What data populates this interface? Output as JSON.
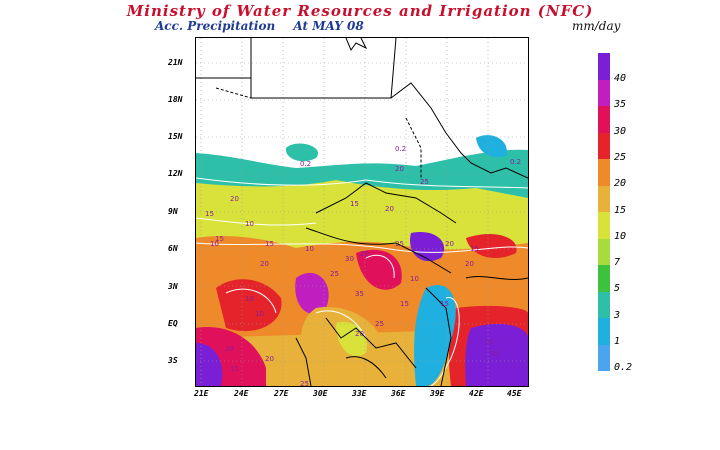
{
  "header": {
    "title": "Ministry of Water Resources and Irrigation (NFC)",
    "subtitle_label": "Acc. Precipitation",
    "subtitle_date": "At MAY 08",
    "units": "mm/day"
  },
  "map": {
    "lat_labels": [
      "21N",
      "18N",
      "15N",
      "12N",
      "9N",
      "6N",
      "3N",
      "EQ",
      "3S"
    ],
    "lon_labels": [
      "21E",
      "24E",
      "27E",
      "30E",
      "33E",
      "36E",
      "39E",
      "42E",
      "45E"
    ],
    "contour_labels": [
      "0.2",
      "0.2",
      "0.2",
      "10",
      "15",
      "20",
      "25",
      "20",
      "15",
      "15",
      "10",
      "20",
      "25",
      "30",
      "35",
      "20",
      "15",
      "10",
      "10",
      "20",
      "15",
      "20",
      "25",
      "20",
      "25",
      "15",
      "10",
      "20",
      "15",
      "20",
      "25",
      "30",
      "35",
      "10",
      "15",
      "20"
    ]
  },
  "colorbar": {
    "labels": [
      "40",
      "35",
      "30",
      "25",
      "20",
      "15",
      "10",
      "7",
      "5",
      "3",
      "1",
      "0.2"
    ],
    "colors": [
      "#7a1fd6",
      "#c01fc0",
      "#e0105a",
      "#e4242a",
      "#ee8a2a",
      "#e8b23a",
      "#d8e23a",
      "#a8dc3c",
      "#3cc23c",
      "#2ebfa8",
      "#1fb0e0",
      "#4aa4f0"
    ]
  }
}
